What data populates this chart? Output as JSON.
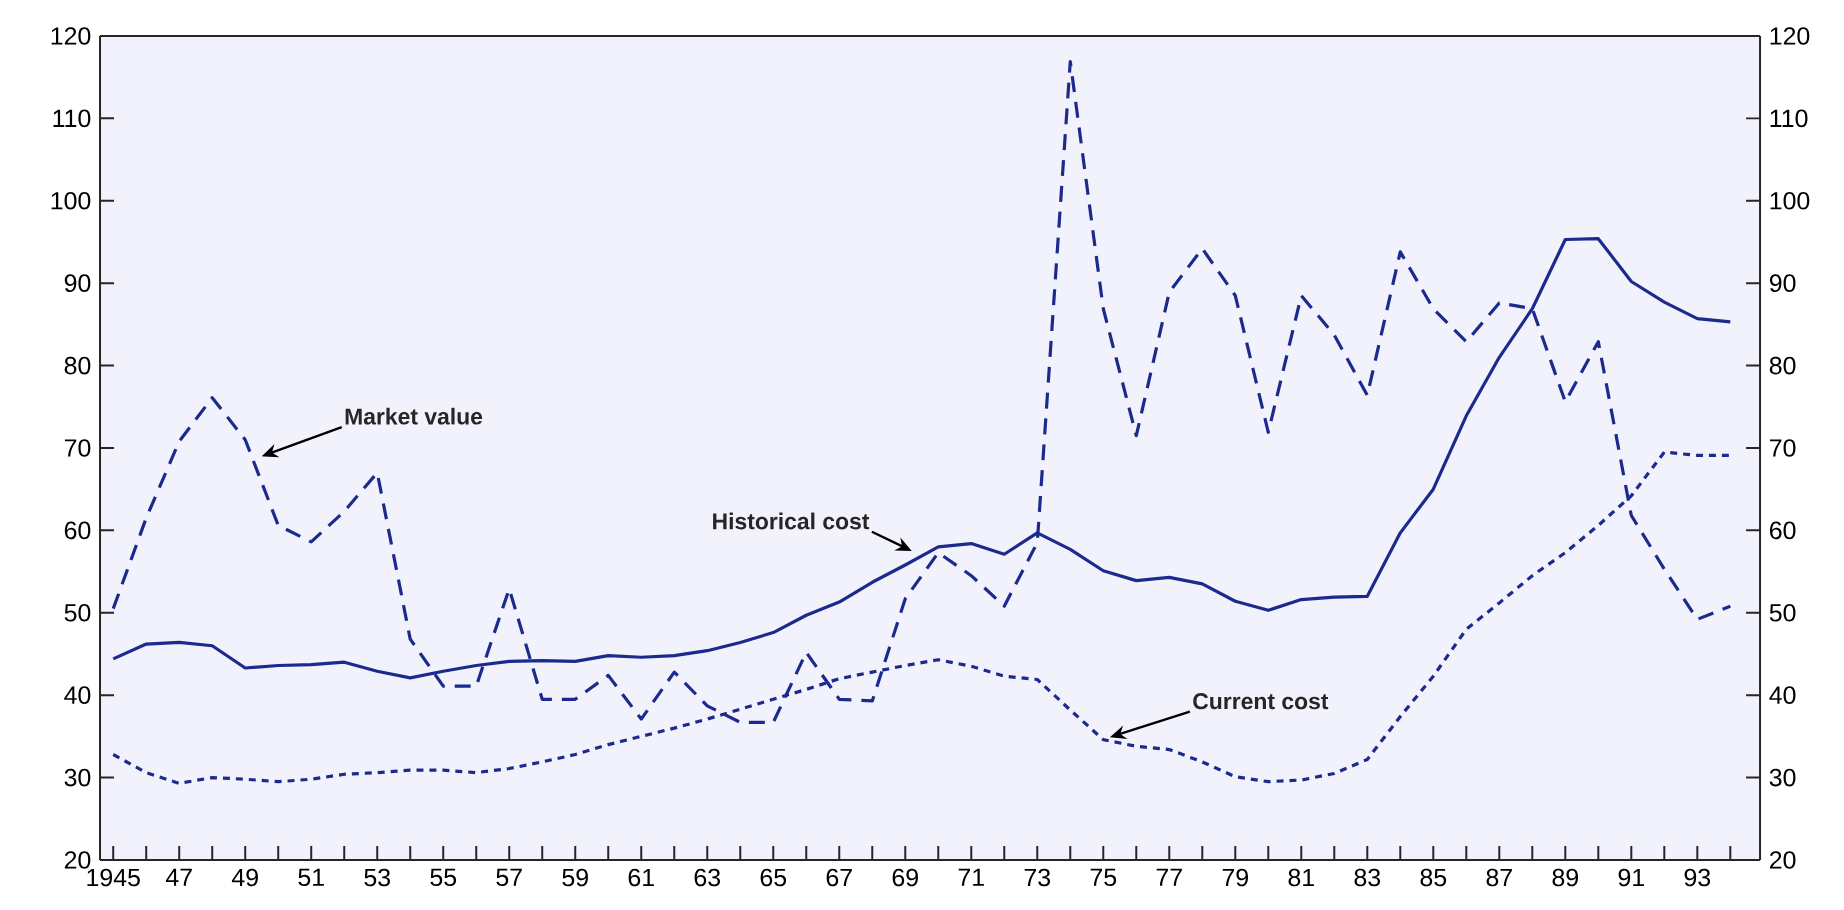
{
  "chart_data": {
    "type": "line",
    "xlim": [
      1944.6,
      1994.9
    ],
    "ylim": [
      20,
      120
    ],
    "yticks": [
      20,
      30,
      40,
      50,
      60,
      70,
      80,
      90,
      100,
      110,
      120
    ],
    "y2lim": [
      20,
      120
    ],
    "y2ticks": [
      20,
      30,
      40,
      50,
      60,
      70,
      80,
      90,
      100,
      110,
      120
    ],
    "xticks": [
      {
        "value": 1945,
        "label": "1945"
      },
      {
        "value": 1946,
        "label": null
      },
      {
        "value": 1947,
        "label": "47"
      },
      {
        "value": 1948,
        "label": null
      },
      {
        "value": 1949,
        "label": "49"
      },
      {
        "value": 1950,
        "label": null
      },
      {
        "value": 1951,
        "label": "51"
      },
      {
        "value": 1952,
        "label": null
      },
      {
        "value": 1953,
        "label": "53"
      },
      {
        "value": 1954,
        "label": null
      },
      {
        "value": 1955,
        "label": "55"
      },
      {
        "value": 1956,
        "label": null
      },
      {
        "value": 1957,
        "label": "57"
      },
      {
        "value": 1958,
        "label": null
      },
      {
        "value": 1959,
        "label": "59"
      },
      {
        "value": 1960,
        "label": null
      },
      {
        "value": 1961,
        "label": "61"
      },
      {
        "value": 1962,
        "label": null
      },
      {
        "value": 1963,
        "label": "63"
      },
      {
        "value": 1964,
        "label": null
      },
      {
        "value": 1965,
        "label": "65"
      },
      {
        "value": 1966,
        "label": null
      },
      {
        "value": 1967,
        "label": "67"
      },
      {
        "value": 1968,
        "label": null
      },
      {
        "value": 1969,
        "label": "69"
      },
      {
        "value": 1970,
        "label": null
      },
      {
        "value": 1971,
        "label": "71"
      },
      {
        "value": 1972,
        "label": null
      },
      {
        "value": 1973,
        "label": "73"
      },
      {
        "value": 1974,
        "label": null
      },
      {
        "value": 1975,
        "label": "75"
      },
      {
        "value": 1976,
        "label": null
      },
      {
        "value": 1977,
        "label": "77"
      },
      {
        "value": 1978,
        "label": null
      },
      {
        "value": 1979,
        "label": "79"
      },
      {
        "value": 1980,
        "label": null
      },
      {
        "value": 1981,
        "label": "81"
      },
      {
        "value": 1982,
        "label": null
      },
      {
        "value": 1983,
        "label": "83"
      },
      {
        "value": 1984,
        "label": null
      },
      {
        "value": 1985,
        "label": "85"
      },
      {
        "value": 1986,
        "label": null
      },
      {
        "value": 1987,
        "label": "87"
      },
      {
        "value": 1988,
        "label": null
      },
      {
        "value": 1989,
        "label": "89"
      },
      {
        "value": 1990,
        "label": null
      },
      {
        "value": 1991,
        "label": "91"
      },
      {
        "value": 1992,
        "label": null
      },
      {
        "value": 1993,
        "label": "93"
      },
      {
        "value": 1994,
        "label": null
      }
    ],
    "x": [
      1945,
      1946,
      1947,
      1948,
      1949,
      1950,
      1951,
      1952,
      1953,
      1954,
      1955,
      1956,
      1957,
      1958,
      1959,
      1960,
      1961,
      1962,
      1963,
      1964,
      1965,
      1966,
      1967,
      1968,
      1969,
      1970,
      1971,
      1972,
      1973,
      1974,
      1975,
      1976,
      1977,
      1978,
      1979,
      1980,
      1981,
      1982,
      1983,
      1984,
      1985,
      1986,
      1987,
      1988,
      1989,
      1990,
      1991,
      1992,
      1993,
      1994
    ],
    "grid": false,
    "marker": "none",
    "series": [
      {
        "color": "#1b2a8c",
        "line_style": "solid",
        "values": [
          44.4,
          46.2,
          46.4,
          46,
          43.3,
          43.6,
          43.7,
          44,
          42.9,
          42.1,
          42.9,
          43.6,
          44.1,
          44.2,
          44.1,
          44.8,
          44.6,
          44.8,
          45.4,
          46.4,
          47.6,
          49.7,
          51.3,
          53.7,
          55.8,
          58,
          58.4,
          57.1,
          59.7,
          57.7,
          55.1,
          53.9,
          54.3,
          53.5,
          51.4,
          50.3,
          51.6,
          51.9,
          52,
          59.7,
          65,
          73.9,
          81,
          86.9,
          95.3,
          95.4,
          90.2,
          87.7,
          85.7,
          85.3
        ]
      },
      {
        "color": "#1b2a8c",
        "line_style": "dashed",
        "values": [
          50.5,
          61.5,
          70.8,
          76.1,
          71,
          60.6,
          58.6,
          62.3,
          67,
          46.8,
          41.1,
          41.1,
          52.9,
          39.5,
          39.5,
          42.4,
          37.1,
          42.8,
          38.7,
          36.7,
          36.7,
          45.2,
          39.5,
          39.3,
          51.7,
          57.3,
          54.5,
          50.8,
          58.5,
          116.9,
          86.9,
          71.5,
          88.9,
          94.2,
          88.5,
          71.9,
          88.5,
          83.7,
          76.4,
          93.8,
          86.9,
          82.9,
          87.6,
          86.9,
          75.6,
          82.9,
          61.8,
          55.3,
          49.2,
          50.8
        ]
      },
      {
        "color": "#1b2a8c",
        "line_style": "dotted",
        "values": [
          32.8,
          30.6,
          29.3,
          30,
          29.8,
          29.5,
          29.8,
          30.4,
          30.6,
          30.9,
          30.9,
          30.6,
          31.1,
          31.9,
          32.8,
          34,
          35,
          36,
          37.1,
          38.3,
          39.5,
          40.7,
          42,
          42.8,
          43.6,
          44.3,
          43.5,
          42.3,
          41.9,
          38.2,
          34.6,
          33.8,
          33.4,
          31.9,
          30.1,
          29.5,
          29.7,
          30.5,
          32.2,
          37.4,
          42.3,
          48,
          51.2,
          54.5,
          57.3,
          60.6,
          64.2,
          69.5,
          69.1,
          69.1
        ]
      }
    ],
    "annotations": [
      {
        "text": "Market value",
        "x": 1949.5,
        "y": 69
      },
      {
        "text": "Historical cost",
        "x": 1969.2,
        "y": 57.5
      },
      {
        "text": "Current cost",
        "x": 1975.2,
        "y": 34.9
      }
    ]
  }
}
